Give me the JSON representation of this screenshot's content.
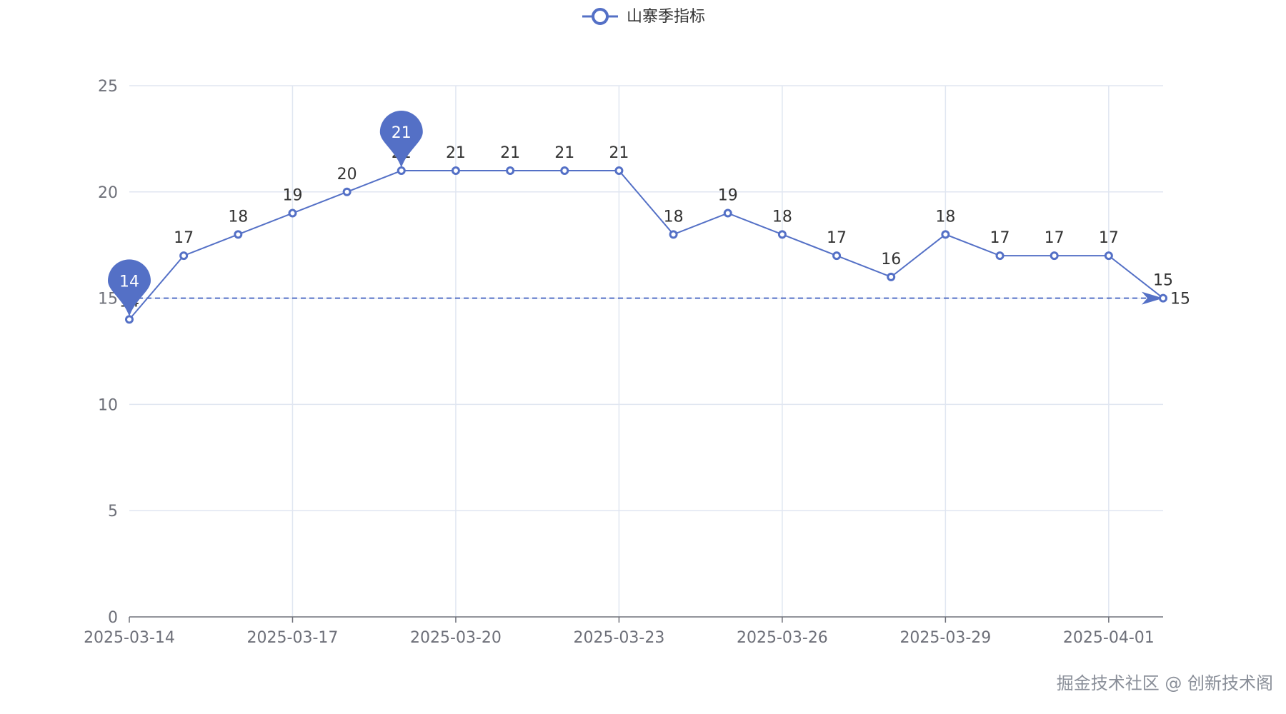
{
  "chart_data": {
    "type": "line",
    "legend": {
      "label": "山寨季指标",
      "position": "top-center"
    },
    "x": [
      "2025-03-14",
      "2025-03-15",
      "2025-03-16",
      "2025-03-17",
      "2025-03-18",
      "2025-03-19",
      "2025-03-20",
      "2025-03-21",
      "2025-03-22",
      "2025-03-23",
      "2025-03-24",
      "2025-03-25",
      "2025-03-26",
      "2025-03-27",
      "2025-03-28",
      "2025-03-29",
      "2025-03-30",
      "2025-03-31",
      "2025-04-01",
      "2025-04-02"
    ],
    "x_tick_labels": [
      "2025-03-14",
      "2025-03-17",
      "2025-03-20",
      "2025-03-23",
      "2025-03-26",
      "2025-03-29",
      "2025-04-01"
    ],
    "series": [
      {
        "name": "山寨季指标",
        "values": [
          14,
          17,
          18,
          19,
          20,
          21,
          21,
          21,
          21,
          21,
          18,
          19,
          18,
          17,
          16,
          18,
          17,
          17,
          17,
          15
        ]
      }
    ],
    "ylim": [
      0,
      25
    ],
    "y_ticks": [
      0,
      5,
      10,
      15,
      20,
      25
    ],
    "grid": true,
    "mark_points": [
      {
        "type": "min",
        "value": 14,
        "date": "2025-03-14"
      },
      {
        "type": "max",
        "value": 21,
        "date": "2025-03-19"
      }
    ],
    "mark_line": {
      "value": 15,
      "label": "15",
      "style": "dashed"
    },
    "colors": {
      "series": "#5470c6",
      "grid": "#e0e6f1",
      "axis": "#6e7079"
    }
  },
  "watermark": "掘金技术社区 @ 创新技术阁"
}
